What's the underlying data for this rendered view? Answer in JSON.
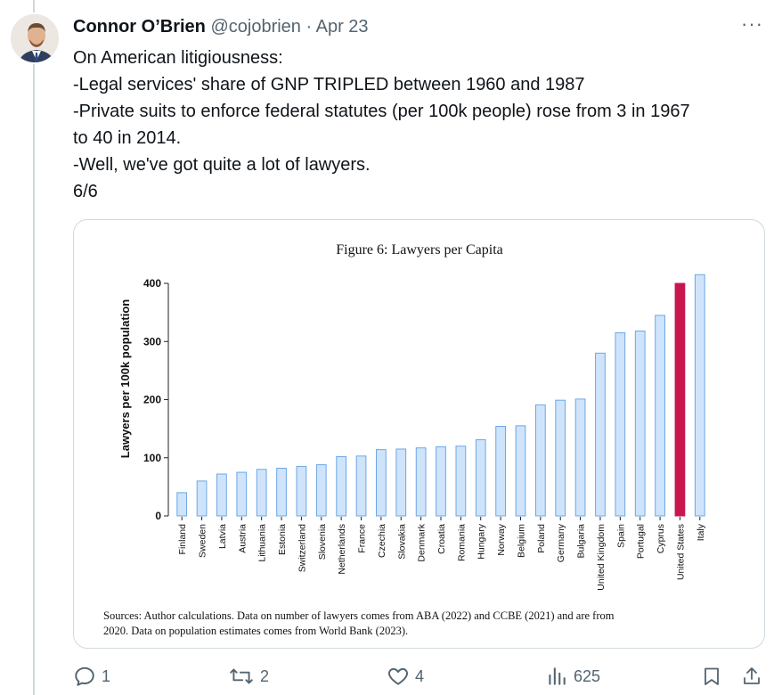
{
  "tweet": {
    "display_name": "Connor O’Brien",
    "handle": "@cojobrien",
    "separator": "·",
    "date": "Apr 23",
    "more_label": "···",
    "lines": [
      "On American litigiousness:",
      "-Legal services' share of GNP TRIPLED between 1960 and 1987",
      "-Private suits to enforce federal statutes (per 100k people) rose from 3 in 1967",
      "to 40 in 2014.",
      "-Well, we've got quite a lot of lawyers.",
      "6/6"
    ]
  },
  "chart_data": {
    "type": "bar",
    "title": "Figure 6: Lawyers per Capita",
    "ylabel": "Lawyers per 100k population",
    "xlabel": "",
    "ylim": [
      0,
      420
    ],
    "yticks": [
      0,
      100,
      200,
      300,
      400
    ],
    "grid": false,
    "categories": [
      "Finland",
      "Sweden",
      "Latvia",
      "Austria",
      "Lithuania",
      "Estonia",
      "Switzerland",
      "Slovenia",
      "Netherlands",
      "France",
      "Czechia",
      "Slovakia",
      "Denmark",
      "Croatia",
      "Romania",
      "Hungary",
      "Norway",
      "Belgium",
      "Poland",
      "Germany",
      "Bulgaria",
      "United Kingdom",
      "Spain",
      "Portugal",
      "Cyprus",
      "United States",
      "Italy"
    ],
    "values": [
      40,
      60,
      72,
      75,
      80,
      82,
      85,
      88,
      102,
      103,
      114,
      115,
      117,
      119,
      120,
      131,
      154,
      155,
      191,
      199,
      201,
      280,
      315,
      318,
      345,
      400,
      415
    ],
    "highlight": "United States",
    "colors": {
      "bar_fill": "#cfe4fb",
      "bar_stroke": "#6aa7e6",
      "highlight_fill": "#c8164e"
    },
    "source": [
      "Sources: Author calculations. Data on number of lawyers comes from ABA (2022) and CCBE (2021) and are from",
      "2020. Data on population estimates comes from World Bank (2023)."
    ]
  },
  "actions": {
    "reply_icon": "reply-icon",
    "reply_count": "1",
    "retweet_icon": "retweet-icon",
    "retweet_count": "2",
    "like_icon": "heart-icon",
    "like_count": "4",
    "views_icon": "views-icon",
    "views_count": "625",
    "bookmark_icon": "bookmark-icon",
    "share_icon": "share-icon"
  },
  "colors": {
    "text": "#0f1419",
    "muted": "#536471",
    "border": "#cfd9de"
  }
}
